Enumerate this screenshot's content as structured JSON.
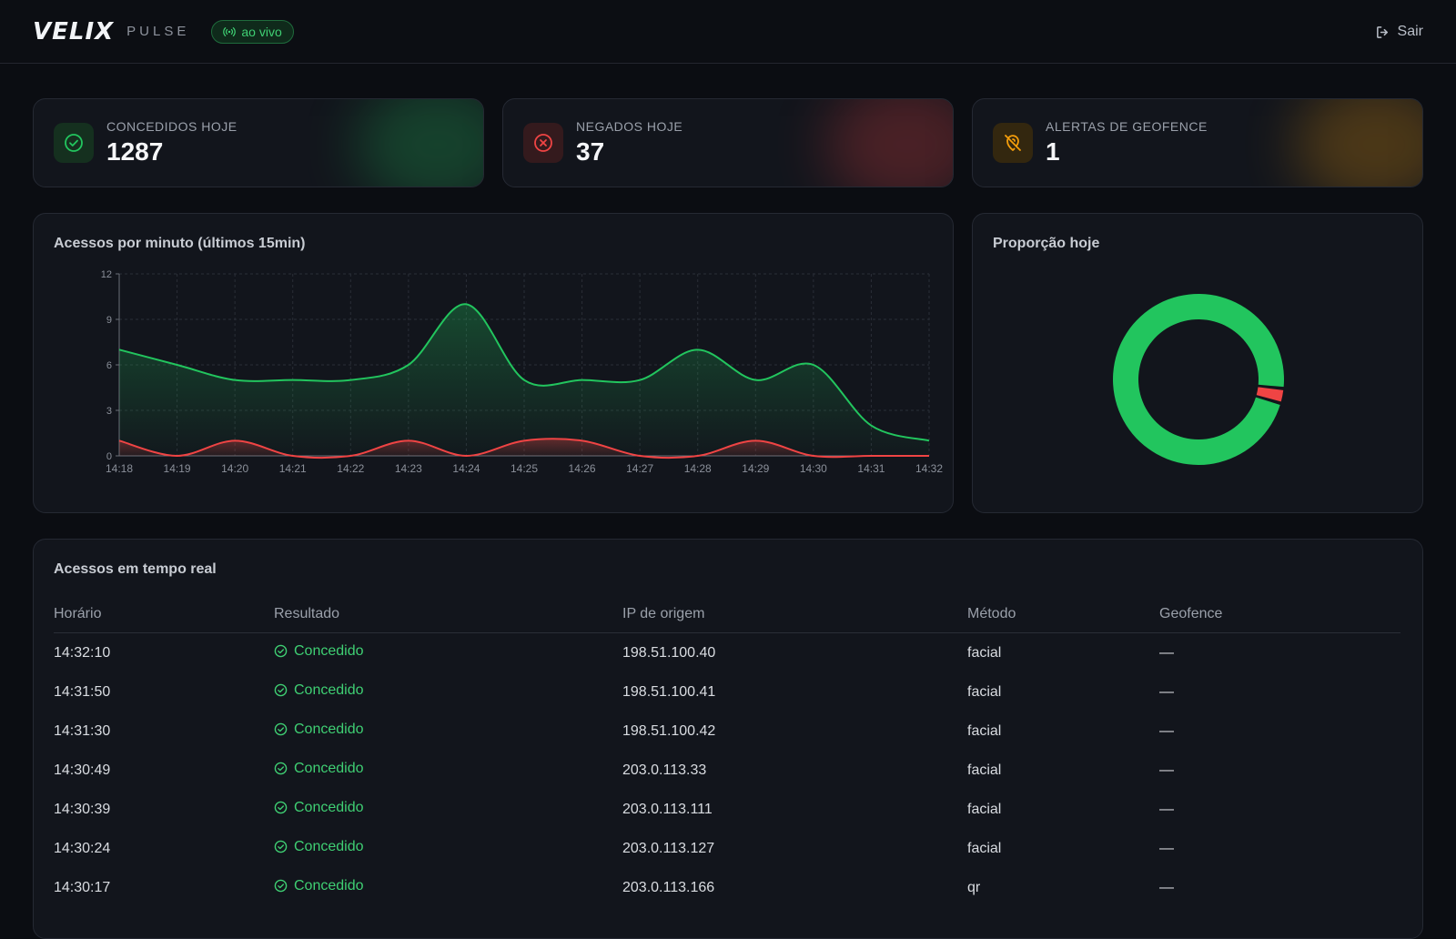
{
  "header": {
    "logo": "VELIX",
    "subbrand": "PULSE",
    "live_label": "ao vivo",
    "logout_label": "Sair"
  },
  "stats": [
    {
      "label": "CONCEDIDOS HOJE",
      "value": "1287",
      "icon": "check-circle-icon",
      "color": "#22c55e"
    },
    {
      "label": "NEGADOS HOJE",
      "value": "37",
      "icon": "x-circle-icon",
      "color": "#ef4444"
    },
    {
      "label": "ALERTAS DE GEOFENCE",
      "value": "1",
      "icon": "map-pin-off-icon",
      "color": "#f59e0b"
    }
  ],
  "line_panel": {
    "title": "Acessos por minuto (últimos 15min)"
  },
  "donut_panel": {
    "title": "Proporção hoje"
  },
  "chart_data": [
    {
      "type": "area",
      "x": [
        "14:18",
        "14:19",
        "14:20",
        "14:21",
        "14:22",
        "14:23",
        "14:24",
        "14:25",
        "14:26",
        "14:27",
        "14:28",
        "14:29",
        "14:30",
        "14:31",
        "14:32"
      ],
      "y_ticks": [
        0,
        3,
        6,
        9,
        12
      ],
      "ylim": [
        0,
        12
      ],
      "grid": true,
      "series": [
        {
          "values": [
            7,
            6,
            5,
            5,
            5,
            6,
            10,
            5,
            5,
            5,
            7,
            5,
            6,
            2,
            1
          ],
          "color": "#22c55e"
        },
        {
          "values": [
            1,
            0,
            1,
            0,
            0,
            1,
            0,
            1,
            1,
            0,
            0,
            1,
            0,
            0,
            0
          ],
          "color": "#ef4444"
        }
      ]
    },
    {
      "type": "pie",
      "values": [
        1287,
        37
      ],
      "colors": [
        "#22c55e",
        "#ef4444"
      ]
    }
  ],
  "table": {
    "title": "Acessos em tempo real",
    "headers": [
      "Horário",
      "Resultado",
      "IP de origem",
      "Método",
      "Geofence"
    ],
    "rows": [
      {
        "time": "14:32:10",
        "result": "Concedido",
        "ip": "198.51.100.40",
        "method": "facial",
        "geofence": "—"
      },
      {
        "time": "14:31:50",
        "result": "Concedido",
        "ip": "198.51.100.41",
        "method": "facial",
        "geofence": "—"
      },
      {
        "time": "14:31:30",
        "result": "Concedido",
        "ip": "198.51.100.42",
        "method": "facial",
        "geofence": "—"
      },
      {
        "time": "14:30:49",
        "result": "Concedido",
        "ip": "203.0.113.33",
        "method": "facial",
        "geofence": "—"
      },
      {
        "time": "14:30:39",
        "result": "Concedido",
        "ip": "203.0.113.111",
        "method": "facial",
        "geofence": "—"
      },
      {
        "time": "14:30:24",
        "result": "Concedido",
        "ip": "203.0.113.127",
        "method": "facial",
        "geofence": "—"
      },
      {
        "time": "14:30:17",
        "result": "Concedido",
        "ip": "203.0.113.166",
        "method": "qr",
        "geofence": "—"
      }
    ]
  }
}
